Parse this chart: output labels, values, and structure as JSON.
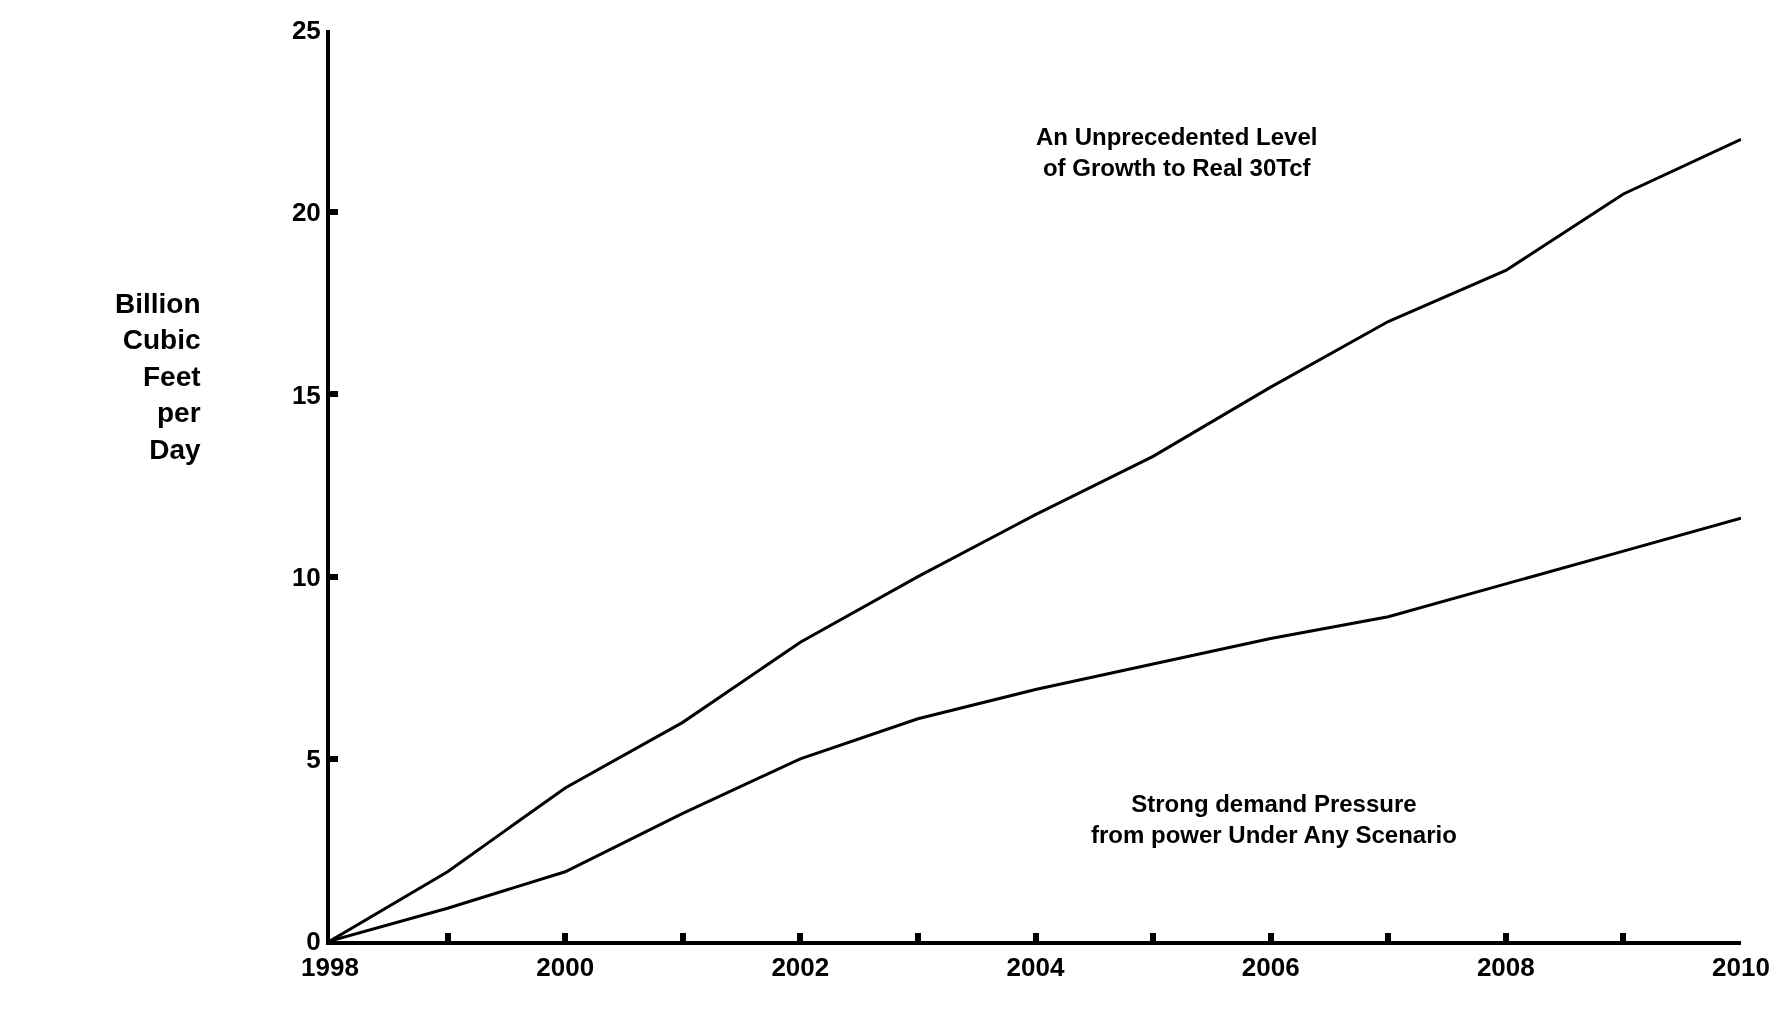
{
  "chart_data": {
    "type": "line",
    "ylabel": "Billion\nCubic\nFeet\nper\nDay",
    "x": [
      1998,
      1999,
      2000,
      2001,
      2002,
      2003,
      2004,
      2005,
      2006,
      2007,
      2008,
      2009,
      2010
    ],
    "series": [
      {
        "color": "#000000",
        "values": [
          0,
          1.9,
          4.2,
          6.0,
          8.2,
          10.0,
          11.7,
          13.3,
          15.2,
          17.0,
          18.4,
          20.5,
          22.0
        ]
      },
      {
        "color": "#000000",
        "values": [
          0,
          0.9,
          1.9,
          3.5,
          5.0,
          6.1,
          6.9,
          7.6,
          8.3,
          8.9,
          9.8,
          10.7,
          11.6
        ]
      }
    ],
    "xlim": [
      1998,
      2010
    ],
    "xticks": [
      1998,
      {
        "value": 1999,
        "label": null
      },
      2000,
      {
        "value": 2001,
        "label": null
      },
      2002,
      {
        "value": 2003,
        "label": null
      },
      2004,
      {
        "value": 2005,
        "label": null
      },
      2006,
      {
        "value": 2007,
        "label": null
      },
      2008,
      {
        "value": 2009,
        "label": null
      },
      2010
    ],
    "ylim": [
      0,
      25
    ],
    "yticks": [
      0,
      5,
      10,
      15,
      20,
      25
    ],
    "annotations": [
      "An Unprecedented Level\nof Growth to Real 30Tcf",
      "Strong demand Pressure\nfrom power Under Any Scenario"
    ],
    "marker": "none",
    "line_style": "solid"
  }
}
